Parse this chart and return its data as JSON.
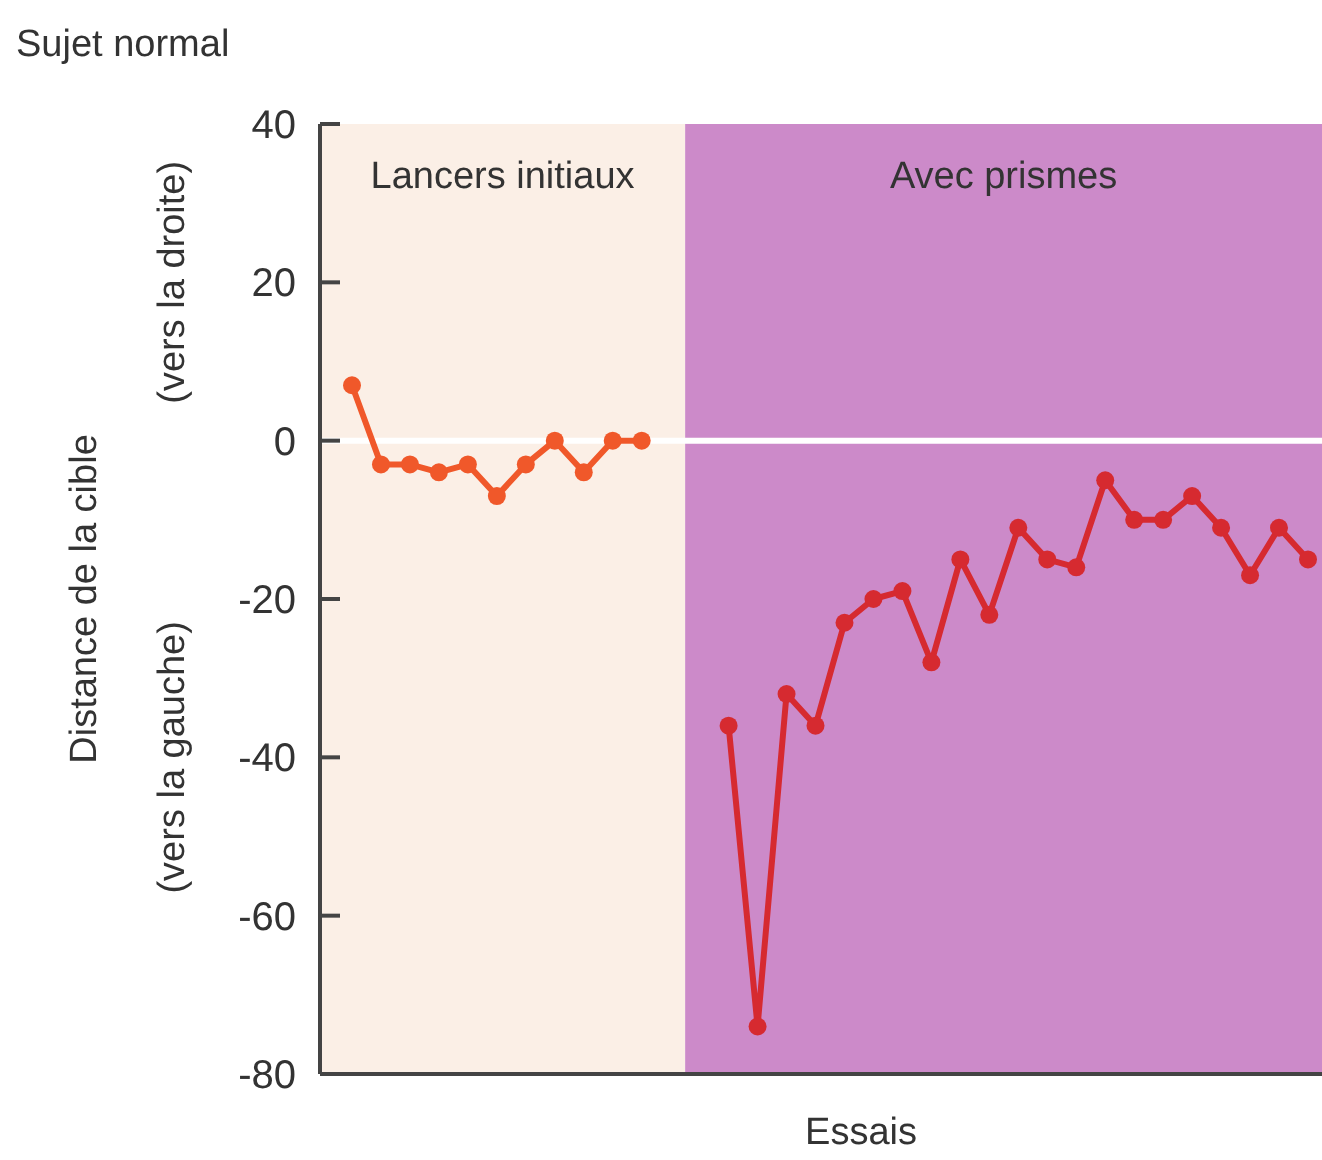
{
  "chart_data": {
    "type": "line",
    "title": "Sujet normal",
    "xlabel": "Essais",
    "ylabel": "Distance de la cible",
    "annotations": [
      "(vers la droite)",
      "(vers la gauche)",
      "Lancers initiaux",
      "Avec prismes"
    ],
    "categories": [
      null,
      null,
      null,
      null,
      null,
      null,
      null,
      null,
      null,
      null,
      null,
      null,
      null,
      null,
      null,
      null,
      null,
      null,
      null,
      null,
      null,
      null,
      null,
      null,
      null,
      null,
      null,
      null,
      null,
      null,
      null,
      null,
      null,
      null
    ],
    "ylim": [
      -80,
      40
    ],
    "yticks": [
      -80,
      -60,
      -40,
      -20,
      0,
      20,
      40
    ],
    "tick_labels": "y",
    "grid": false,
    "marker": "circle",
    "line_style": "solid",
    "ref_lines": [
      {
        "axis": "y",
        "value": 0,
        "color": "#ffffff"
      }
    ],
    "series": [
      {
        "color": "#f0582a",
        "values": [
          7,
          -3,
          -3,
          -4,
          -3,
          -7,
          -3,
          0,
          -4,
          0,
          0,
          null,
          null,
          null,
          null,
          null,
          null,
          null,
          null,
          null,
          null,
          null,
          null,
          null,
          null,
          null,
          null,
          null,
          null,
          null,
          null,
          null,
          null,
          null
        ]
      },
      {
        "color": "#d62a30",
        "values": [
          null,
          null,
          null,
          null,
          null,
          null,
          null,
          null,
          null,
          null,
          null,
          null,
          null,
          -36,
          -74,
          -32,
          -36,
          -23,
          -20,
          -19,
          -28,
          -15,
          -22,
          -11,
          -15,
          -16,
          -5,
          -10,
          -10,
          -7,
          -11,
          -17,
          -11,
          -15
        ]
      }
    ]
  }
}
